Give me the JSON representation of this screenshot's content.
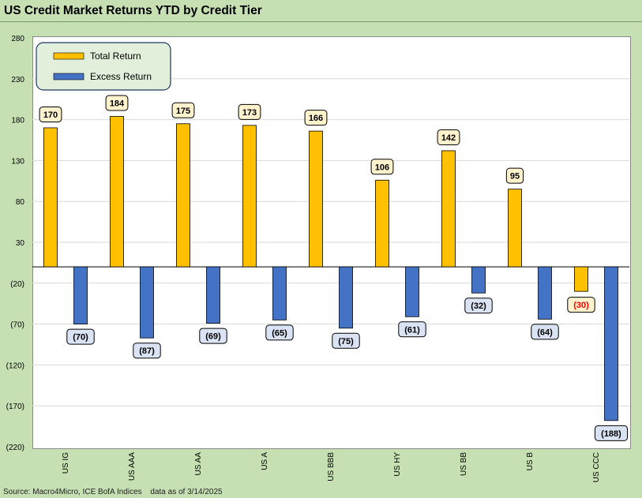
{
  "title": "US Credit Market Returns YTD by Credit Tier",
  "footer": {
    "source": "Source: Macro4Micro, ICE BofA Indices",
    "date": "data as of 3/14/2025"
  },
  "colors": {
    "total_return": "#ffc000",
    "excess_return": "#4472c4",
    "negative_total_label": "#ff0000",
    "total_label_bg": "#fff2cc",
    "excess_label_bg": "#dae3f3"
  },
  "chart_data": {
    "type": "bar",
    "categories": [
      "US IG",
      "US AAA",
      "US AA",
      "US A",
      "US BBB",
      "US HY",
      "US BB",
      "US B",
      "US CCC"
    ],
    "series": [
      {
        "name": "Total Return",
        "values": [
          170,
          184,
          175,
          173,
          166,
          106,
          142,
          95,
          -30
        ]
      },
      {
        "name": "Excess Return",
        "values": [
          -70,
          -87,
          -69,
          -65,
          -75,
          -61,
          -32,
          -64,
          -188
        ]
      }
    ],
    "yticks": [
      "280",
      "230",
      "180",
      "130",
      "80",
      "30",
      "(20)",
      "(70)",
      "(120)",
      "(170)",
      "(220)"
    ],
    "ylim": [
      -220,
      280
    ],
    "grid": true,
    "legend": "top-left",
    "value_labels": {
      "total": [
        "170",
        "184",
        "175",
        "173",
        "166",
        "106",
        "142",
        "95",
        "(30)"
      ],
      "excess": [
        "(70)",
        "(87)",
        "(69)",
        "(65)",
        "(75)",
        "(61)",
        "(32)",
        "(64)",
        "(188)"
      ]
    }
  }
}
